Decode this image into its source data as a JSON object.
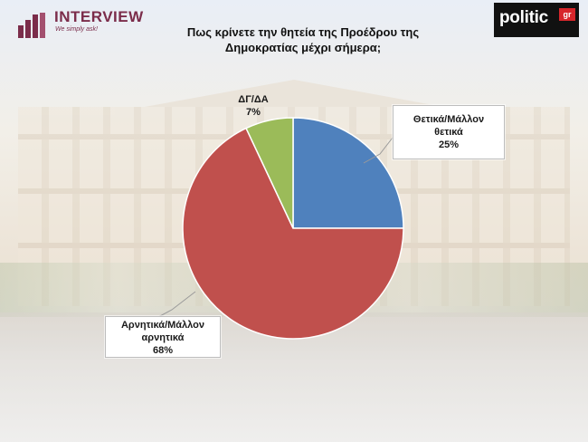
{
  "header": {
    "brand_left": {
      "name": "INTERVIEW",
      "tagline": "We simply ask!"
    },
    "brand_right": {
      "name": "politic",
      "suffix": "gr"
    }
  },
  "chart_data": {
    "type": "pie",
    "title_line1": "Πως κρίνετε την θητεία της Προέδρου της",
    "title_line2": "Δημοκρατίας μέχρι σήμερα;",
    "slices": [
      {
        "label_line1": "Θετικά/Μάλλον",
        "label_line2": "θετικά",
        "value": 25,
        "value_label": "25%",
        "color": "#4f81bd"
      },
      {
        "label_line1": "Αρνητικά/Μάλλον",
        "label_line2": "αρνητικά",
        "value": 68,
        "value_label": "68%",
        "color": "#c0504d"
      },
      {
        "label_line1": "ΔΓ/ΔΑ",
        "label_line2": "",
        "value": 7,
        "value_label": "7%",
        "color": "#9bbb59"
      }
    ],
    "start_angle": "12 o'clock",
    "direction": "clockwise"
  }
}
